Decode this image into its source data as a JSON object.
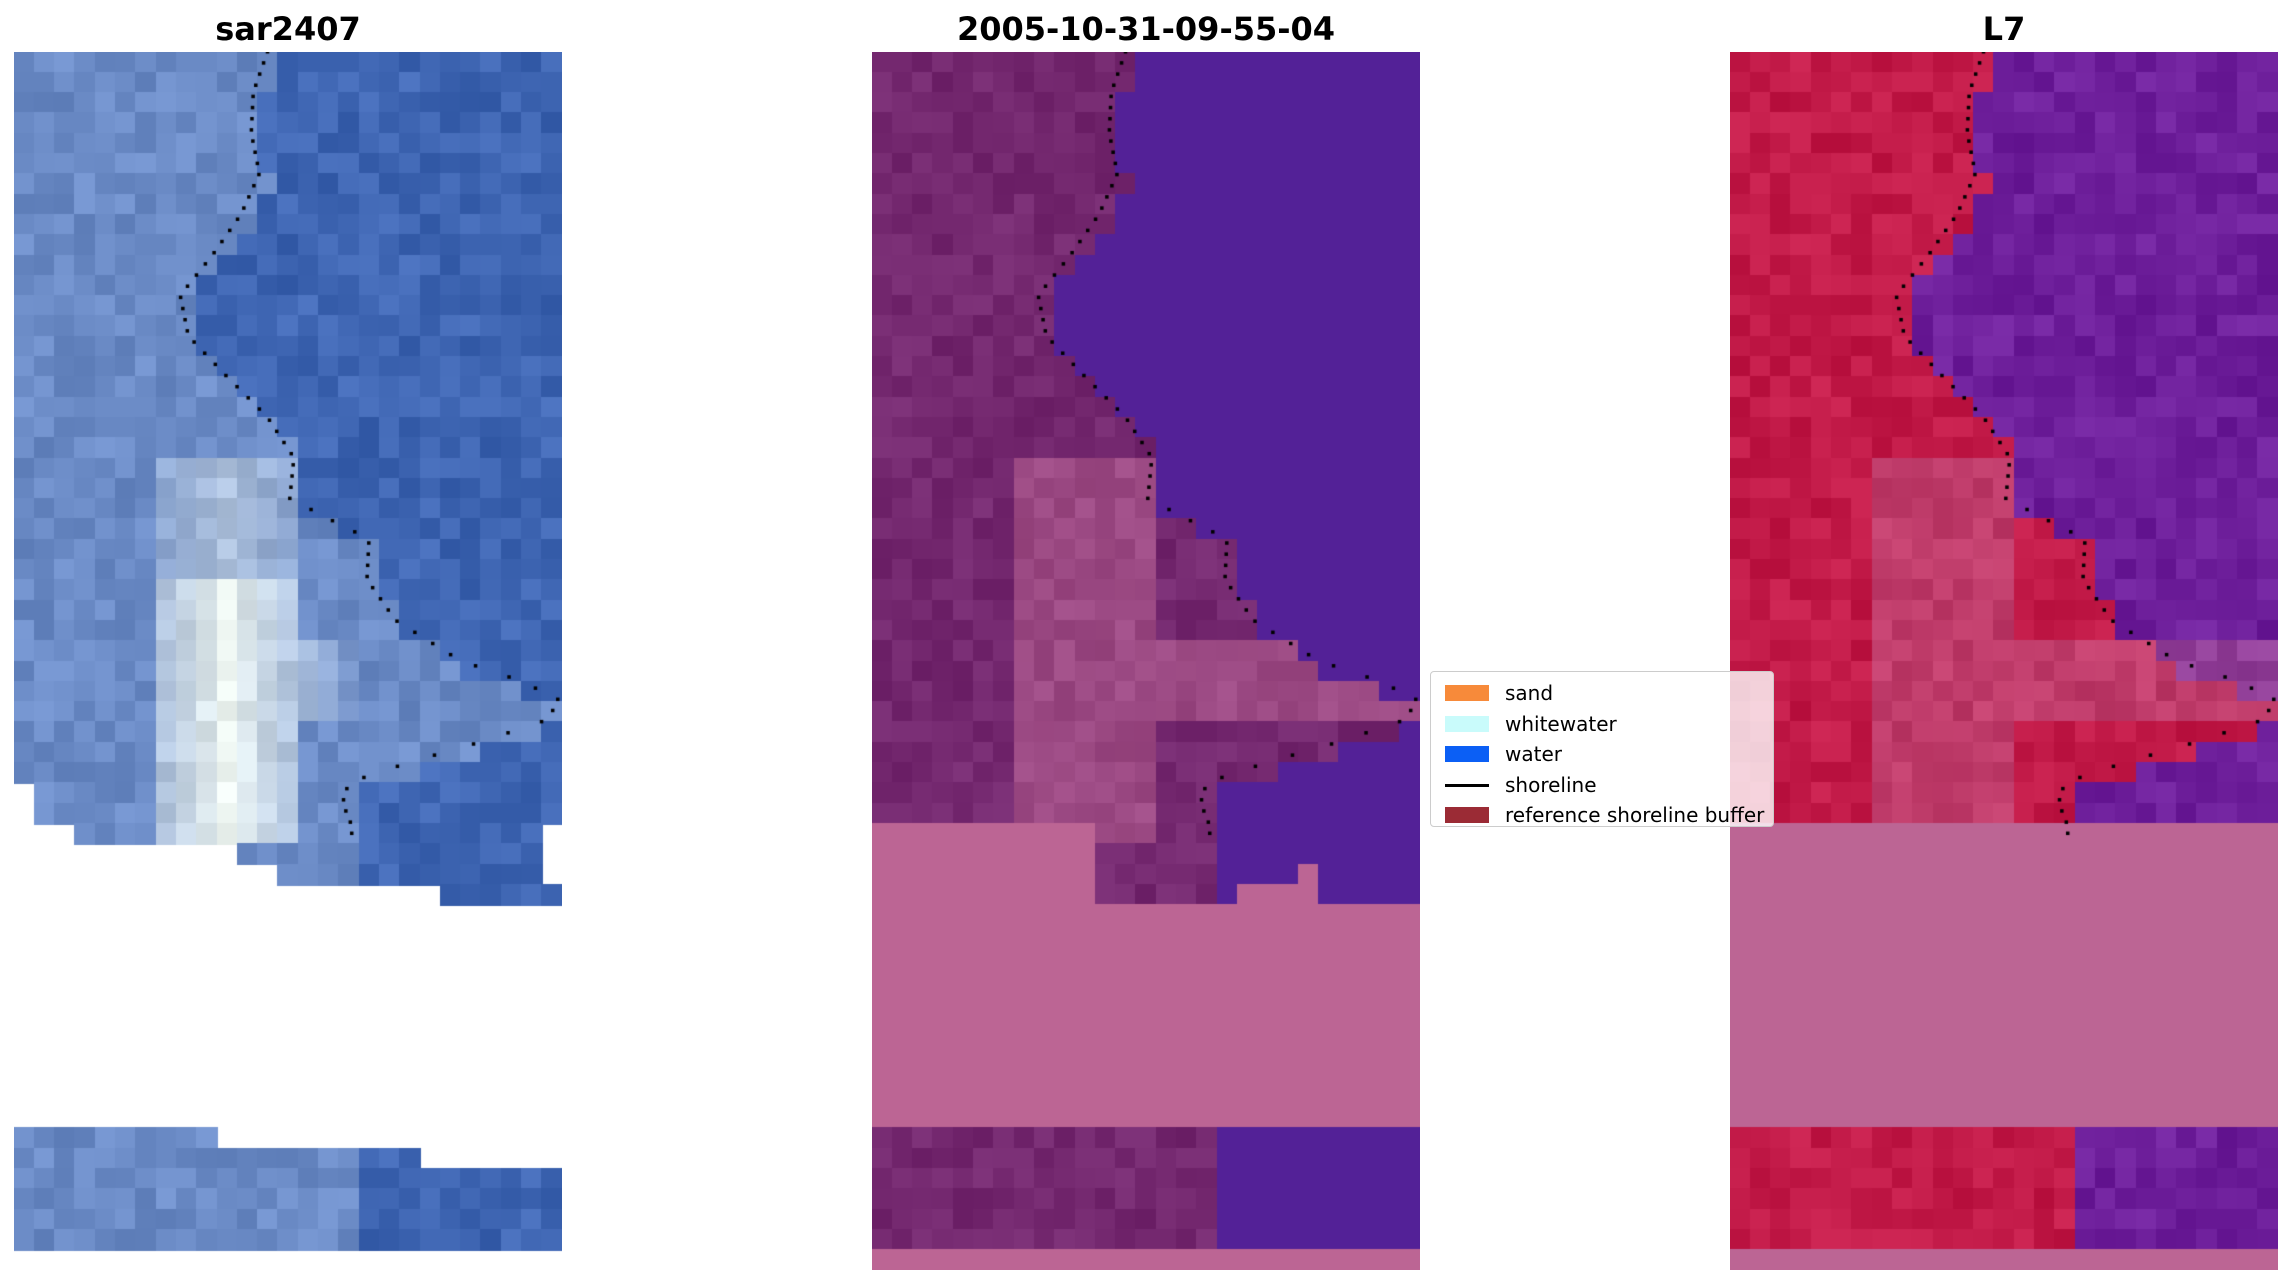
{
  "panels": [
    {
      "title": "sar2407",
      "mode": "rgb"
    },
    {
      "title": "2005-10-31-09-55-04",
      "mode": "classified"
    },
    {
      "title": "L7",
      "mode": "index"
    }
  ],
  "legend": {
    "items": [
      {
        "label": "sand",
        "color": "#f78a3a",
        "kind": "patch"
      },
      {
        "label": "whitewater",
        "color": "#c9fbfb",
        "kind": "patch"
      },
      {
        "label": "water",
        "color": "#0b5ff5",
        "kind": "patch"
      },
      {
        "label": "shoreline",
        "color": "#000000",
        "kind": "line"
      },
      {
        "label": "reference shoreline buffer",
        "color": "#9b2b35",
        "kind": "patch"
      }
    ]
  },
  "colors": {
    "water_blue": "#3f66b3",
    "land_blue": "#6b8bc6",
    "whitewater": "#eef6f2",
    "classified_water": "#532197",
    "classified_land": "#74286f",
    "buffer_pink": "#bc6594",
    "index_land": "#c21a48",
    "index_water": "#6e1f9b"
  }
}
